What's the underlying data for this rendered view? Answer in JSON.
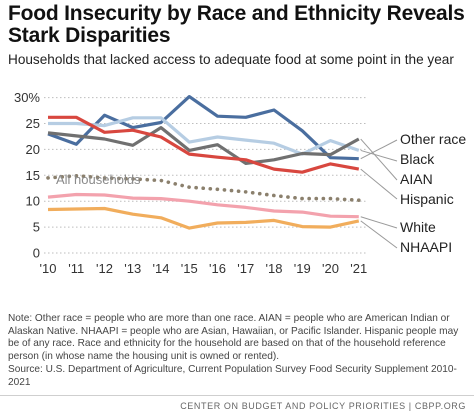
{
  "title": "Food Insecurity by Race and Ethnicity Reveals Stark Disparities",
  "subtitle": "Households that lacked access to adequate food at some point in the year",
  "note": "Note: Other race = people who are more than one race. AIAN = people who are American Indian or Alaskan Native. NHAAPI = people who are Asian, Hawaiian, or Pacific Islander. Hispanic people may be of any race. Race and ethnicity for the household are based on that of the household reference person (in whose name the housing unit is owned or rented).",
  "source": "Source: U.S. Department of Agriculture, Current Population Survey Food Security Supplement 2010-2021",
  "footer": "CENTER ON BUDGET AND POLICY PRIORITIES | CBPP.ORG",
  "chart_data": {
    "type": "line",
    "x_tick_labels": [
      "'10",
      "'11",
      "'12",
      "'13",
      "'14",
      "'15",
      "'16",
      "'17",
      "'18",
      "'19",
      "'20",
      "'21"
    ],
    "y_tick_labels": [
      "0",
      "5",
      "10",
      "15",
      "20",
      "25",
      "30%"
    ],
    "ylim": [
      0,
      30
    ],
    "y_ticks": [
      0,
      5,
      10,
      15,
      20,
      25,
      30
    ],
    "grid": "horizontal dotted",
    "annotation": "All households",
    "series": [
      {
        "name": "Other race",
        "color": "#4a6e9f",
        "style": "solid",
        "values": [
          23.0,
          21.0,
          26.6,
          24.2,
          25.2,
          30.2,
          26.4,
          26.2,
          27.6,
          23.6,
          18.4,
          18.2
        ]
      },
      {
        "name": "Black",
        "color": "#b6cde3",
        "style": "solid",
        "values": [
          25.0,
          25.0,
          24.6,
          26.1,
          26.1,
          21.4,
          22.4,
          21.8,
          21.2,
          19.1,
          21.7,
          19.8
        ]
      },
      {
        "name": "AIAN",
        "color": "#707070",
        "style": "solid",
        "values": [
          23.2,
          22.6,
          22.0,
          20.8,
          24.2,
          19.8,
          20.9,
          17.3,
          18.0,
          19.2,
          19.0,
          22.0
        ]
      },
      {
        "name": "Hispanic",
        "color": "#d8473f",
        "style": "solid",
        "values": [
          26.2,
          26.2,
          23.3,
          23.7,
          22.4,
          19.1,
          18.5,
          18.0,
          16.2,
          15.6,
          17.2,
          16.2
        ]
      },
      {
        "name": "All households",
        "color": "#8b806d",
        "style": "dotted",
        "values": [
          14.5,
          14.9,
          14.5,
          14.3,
          14.0,
          12.7,
          12.3,
          11.8,
          11.1,
          10.5,
          10.5,
          10.2
        ]
      },
      {
        "name": "White",
        "color": "#f3a2ad",
        "style": "solid",
        "values": [
          10.8,
          11.3,
          11.2,
          10.6,
          10.5,
          10.0,
          9.3,
          8.8,
          8.1,
          7.9,
          7.1,
          7.0
        ]
      },
      {
        "name": "NHAAPI",
        "color": "#f1ad5c",
        "style": "solid",
        "values": [
          8.4,
          8.5,
          8.6,
          7.5,
          6.8,
          4.8,
          5.8,
          5.9,
          6.3,
          5.1,
          5.0,
          6.2
        ]
      }
    ]
  }
}
